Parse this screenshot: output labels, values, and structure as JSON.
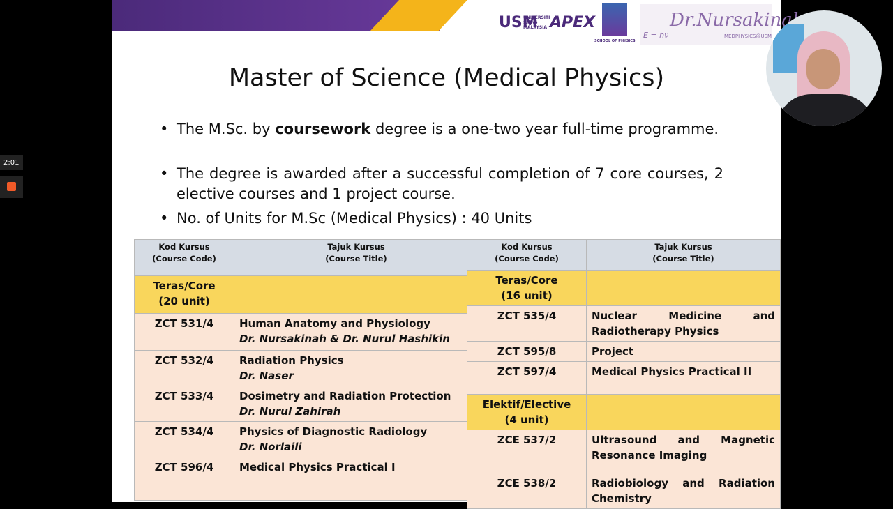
{
  "overlay": {
    "timer": "2:01"
  },
  "header": {
    "logos": [
      "USM",
      "UNIVERSITI SAINS MALAYSIA",
      "APEX",
      "SCHOOL OF PHYSICS",
      "Dr.Nursakinah",
      "MEDPHYSICS@USM",
      "E = hν"
    ]
  },
  "title": "Master of Science (Medical Physics)",
  "bullets": [
    [
      "The M.Sc. by ",
      "coursework",
      " degree is a one-two year full-time programme."
    ],
    [
      "The degree is awarded after a successful completion of  7 core courses, 2 elective courses and 1 project course."
    ],
    [
      "No. of Units for  M.Sc (Medical Physics) : 40 Units"
    ]
  ],
  "tables": [
    {
      "header": [
        [
          "Kod Kursus",
          "(Course Code)"
        ],
        [
          "Tajuk Kursus",
          "(Course Title)"
        ]
      ],
      "rows": [
        {
          "code": [
            "Teras/Core",
            "(20 unit)"
          ]
        },
        {
          "code": [
            "ZCT 531/4"
          ],
          "title": [
            "Human Anatomy and Physiology"
          ],
          "lecturer": "Dr. Nursakinah & Dr. Nurul Hashikin"
        },
        {
          "code": [
            "ZCT 532/4"
          ],
          "title": [
            "Radiation Physics"
          ],
          "lecturer": "Dr. Naser"
        },
        {
          "code": [
            "ZCT 533/4"
          ],
          "title": [
            "Dosimetry and Radiation Protection"
          ],
          "lecturer": "Dr. Nurul Zahirah"
        },
        {
          "code": [
            "ZCT 534/4"
          ],
          "title": [
            "Physics of Diagnostic Radiology"
          ],
          "lecturer": "Dr. Norlaili"
        },
        {
          "code": [
            "ZCT 596/4"
          ],
          "title": [
            "Medical Physics Practical I"
          ]
        }
      ]
    },
    {
      "header": [
        [
          "Kod Kursus",
          "(Course Code)"
        ],
        [
          "Tajuk Kursus",
          "(Course Title)"
        ]
      ],
      "rows": [
        {
          "code": [
            "Teras/Core",
            "(16 unit)"
          ]
        },
        {
          "code": [
            "ZCT 535/4"
          ],
          "title": [
            "Nuclear Medicine and Radiotherapy Physics"
          ]
        },
        {
          "code": [
            "ZCT 595/8"
          ],
          "title": [
            "Project"
          ]
        },
        {
          "code": [
            "ZCT 597/4"
          ],
          "title": [
            "Medical Physics Practical II"
          ]
        },
        {
          "code": [
            "Elektif/Elective",
            "(4 unit)"
          ]
        },
        {
          "code": [
            "ZCE 537/2"
          ],
          "title": [
            "Ultrasound and Magnetic Resonance Imaging"
          ]
        },
        {
          "code": [
            "ZCE 538/2"
          ],
          "title": [
            "Radiobiology and Radiation Chemistry"
          ]
        }
      ]
    }
  ]
}
